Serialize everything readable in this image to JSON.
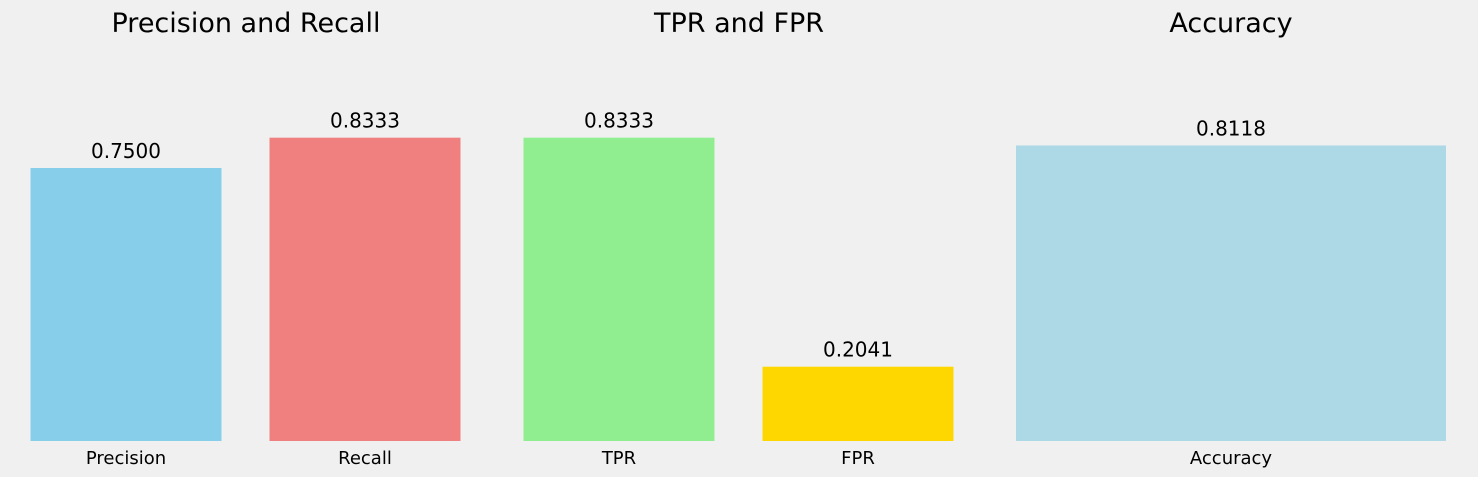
{
  "chart_data": [
    {
      "type": "bar",
      "title": "Precision and Recall",
      "categories": [
        "Precision",
        "Recall"
      ],
      "values": [
        0.75,
        0.8333
      ],
      "value_labels": [
        "0.7500",
        "0.8333"
      ],
      "colors": [
        "#87ceeb",
        "#f08080"
      ],
      "ylim": [
        0,
        1
      ],
      "grid": false,
      "xlabel": "",
      "ylabel": ""
    },
    {
      "type": "bar",
      "title": "TPR and FPR",
      "categories": [
        "TPR",
        "FPR"
      ],
      "values": [
        0.8333,
        0.2041
      ],
      "value_labels": [
        "0.8333",
        "0.2041"
      ],
      "colors": [
        "#90ee90",
        "#ffd700"
      ],
      "ylim": [
        0,
        1
      ],
      "grid": false,
      "xlabel": "",
      "ylabel": ""
    },
    {
      "type": "bar",
      "title": "Accuracy",
      "categories": [
        "Accuracy"
      ],
      "values": [
        0.8118
      ],
      "value_labels": [
        "0.8118"
      ],
      "colors": [
        "#add8e6"
      ],
      "ylim": [
        0,
        1
      ],
      "grid": false,
      "xlabel": "",
      "ylabel": ""
    }
  ]
}
